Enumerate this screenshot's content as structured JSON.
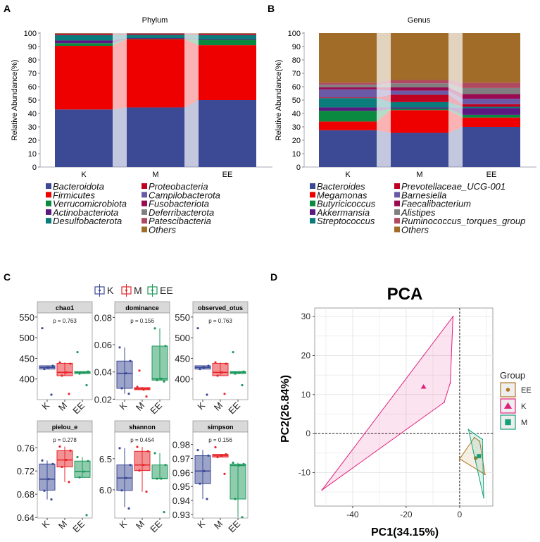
{
  "chart_data": [
    {
      "type": "bar",
      "stacked": true,
      "panel_label": "A",
      "title": "Phylum",
      "ylabel": "Relative Abundance(%)",
      "ylim": [
        0,
        100
      ],
      "yticks": [
        "0",
        "10",
        "20",
        "30",
        "40",
        "50",
        "60",
        "70",
        "80",
        "90",
        "100"
      ],
      "categories": [
        "K",
        "M",
        "EE"
      ],
      "series": [
        {
          "name": "Bacteroidota",
          "color": "#3c4a96",
          "values": [
            43,
            44.5,
            50
          ]
        },
        {
          "name": "Firmicutes",
          "color": "#ee0000",
          "values": [
            47.5,
            51,
            41
          ]
        },
        {
          "name": "Verrucomicrobiota",
          "color": "#0a8a40",
          "values": [
            2,
            0.3,
            4
          ]
        },
        {
          "name": "Actinobacteriota",
          "color": "#5a1880",
          "values": [
            2,
            0.5,
            0.5
          ]
        },
        {
          "name": "Desulfobacterota",
          "color": "#0a7c7c",
          "values": [
            4,
            2.5,
            3
          ]
        },
        {
          "name": "Proteobacteria",
          "color": "#c00020",
          "values": [
            0.8,
            0.7,
            0.8
          ]
        },
        {
          "name": "Campilobacterota",
          "color": "#6a5aa6",
          "values": [
            0.1,
            0.1,
            0.1
          ]
        },
        {
          "name": "Fusobacteriota",
          "color": "#9a0a50",
          "values": [
            0.1,
            0.1,
            0.1
          ]
        },
        {
          "name": "Deferribacterota",
          "color": "#808080",
          "values": [
            0.1,
            0.1,
            0.1
          ]
        },
        {
          "name": "Patescibacteria",
          "color": "#b04a60",
          "values": [
            0.1,
            0.1,
            0.1
          ]
        },
        {
          "name": "Others",
          "color": "#a06c28",
          "values": [
            0.3,
            0.1,
            0.3
          ]
        }
      ]
    },
    {
      "type": "bar",
      "stacked": true,
      "panel_label": "B",
      "title": "Genus",
      "ylabel": "Relative Abundance(%)",
      "ylim": [
        0,
        100
      ],
      "yticks": [
        "0",
        "10",
        "20",
        "30",
        "40",
        "50",
        "60",
        "70",
        "80",
        "90",
        "100"
      ],
      "categories": [
        "K",
        "M",
        "EE"
      ],
      "series": [
        {
          "name": "Bacteroides",
          "color": "#3c4a96",
          "values": [
            27.5,
            25.5,
            30
          ]
        },
        {
          "name": "Megamonas",
          "color": "#ee0000",
          "values": [
            6.5,
            17,
            7
          ]
        },
        {
          "name": "Butyricicoccus",
          "color": "#0a8a40",
          "values": [
            8,
            1,
            2
          ]
        },
        {
          "name": "Akkermansia",
          "color": "#5a1880",
          "values": [
            2.5,
            1,
            5
          ]
        },
        {
          "name": "Streptococcus",
          "color": "#0a7c7c",
          "values": [
            7,
            4,
            1
          ]
        },
        {
          "name": "Prevotellaceae_UCG-001",
          "color": "#c00020",
          "values": [
            0.5,
            5.5,
            2
          ]
        },
        {
          "name": "Barnesiella",
          "color": "#6a5aa6",
          "values": [
            6,
            3,
            4
          ]
        },
        {
          "name": "Faecalibacterium",
          "color": "#9a0a50",
          "values": [
            1.5,
            2.5,
            3.5
          ]
        },
        {
          "name": "Alistipes",
          "color": "#808080",
          "values": [
            2,
            3,
            4.5
          ]
        },
        {
          "name": "Ruminococcus_torques_group",
          "color": "#b04a60",
          "values": [
            1.5,
            2.5,
            4
          ]
        },
        {
          "name": "Others",
          "color": "#a06c28",
          "values": [
            37,
            35,
            37
          ]
        }
      ]
    },
    {
      "type": "boxplot",
      "panel_label": "C",
      "legend": [
        {
          "name": "K",
          "color": "#3c4a96"
        },
        {
          "name": "M",
          "color": "#e8262b"
        },
        {
          "name": "EE",
          "color": "#1f9a5e"
        }
      ],
      "facets": [
        {
          "name": "chao1",
          "p_label": "p = 0.763",
          "ylim": [
            350,
            560
          ],
          "yticks": [
            "400",
            "450",
            "500",
            "550"
          ],
          "groups": [
            {
              "group": "K",
              "q1": 424,
              "median": 428,
              "q3": 432,
              "whisker_low": 424,
              "whisker_high": 432,
              "points": [
                523,
                432,
                428,
                424,
                362
              ]
            },
            {
              "group": "M",
              "q1": 408,
              "median": 416,
              "q3": 438,
              "whisker_low": 408,
              "whisker_high": 440,
              "points": [
                440,
                437,
                416,
                408,
                364
              ]
            },
            {
              "group": "EE",
              "q1": 413,
              "median": 416,
              "q3": 418,
              "whisker_low": 413,
              "whisker_high": 418,
              "points": [
                465,
                418,
                416,
                413,
                385
              ]
            }
          ]
        },
        {
          "name": "dominance",
          "p_label": "p = 0.156",
          "ylim": [
            0.0197,
            0.0833
          ],
          "yticks": [
            "0.02",
            "0.04",
            "0.06",
            "0.08"
          ],
          "groups": [
            {
              "group": "K",
              "q1": 0.028,
              "median": 0.039,
              "q3": 0.048,
              "whisker_low": 0.024,
              "whisker_high": 0.058,
              "points": [
                0.058,
                0.048,
                0.039,
                0.028,
                0.024
              ]
            },
            {
              "group": "M",
              "q1": 0.027,
              "median": 0.0277,
              "q3": 0.0285,
              "whisker_low": 0.027,
              "whisker_high": 0.029,
              "points": [
                0.029,
                0.028,
                0.027,
                0.041,
                0.022
              ]
            },
            {
              "group": "EE",
              "q1": 0.034,
              "median": 0.035,
              "q3": 0.059,
              "whisker_low": 0.034,
              "whisker_high": 0.072,
              "points": [
                0.072,
                0.059,
                0.035,
                0.034,
                0.033
              ]
            }
          ]
        },
        {
          "name": "observed_otus",
          "p_label": "p = 0.763",
          "ylim": [
            350,
            560
          ],
          "yticks": [
            "400",
            "450",
            "500",
            "550"
          ],
          "groups": [
            {
              "group": "K",
              "q1": 424,
              "median": 428,
              "q3": 432,
              "whisker_low": 424,
              "whisker_high": 432,
              "points": [
                523,
                432,
                428,
                424,
                362
              ]
            },
            {
              "group": "M",
              "q1": 408,
              "median": 416,
              "q3": 438,
              "whisker_low": 408,
              "whisker_high": 440,
              "points": [
                440,
                437,
                416,
                408,
                364
              ]
            },
            {
              "group": "EE",
              "q1": 413,
              "median": 416,
              "q3": 418,
              "whisker_low": 413,
              "whisker_high": 418,
              "points": [
                465,
                418,
                416,
                413,
                385
              ]
            }
          ]
        },
        {
          "name": "pielou_e",
          "p_label": "p = 0.278",
          "ylim": [
            0.639,
            0.787
          ],
          "yticks": [
            "0.64",
            "0.68",
            "0.72",
            "0.76"
          ],
          "groups": [
            {
              "group": "K",
              "q1": 0.687,
              "median": 0.706,
              "q3": 0.732,
              "whisker_low": 0.671,
              "whisker_high": 0.738,
              "points": [
                0.738,
                0.732,
                0.706,
                0.686,
                0.671
              ]
            },
            {
              "group": "M",
              "q1": 0.727,
              "median": 0.739,
              "q3": 0.755,
              "whisker_low": 0.701,
              "whisker_high": 0.762,
              "points": [
                0.762,
                0.755,
                0.739,
                0.727,
                0.701
              ]
            },
            {
              "group": "EE",
              "q1": 0.709,
              "median": 0.719,
              "q3": 0.737,
              "whisker_low": 0.709,
              "whisker_high": 0.744,
              "points": [
                0.744,
                0.737,
                0.719,
                0.709,
                0.644
              ]
            }
          ]
        },
        {
          "name": "shannon",
          "p_label": "p = 0.454",
          "ylim": [
            5.545,
            6.93
          ],
          "yticks": [
            "6.0",
            "6.5"
          ],
          "groups": [
            {
              "group": "K",
              "q1": 5.99,
              "median": 6.19,
              "q3": 6.4,
              "whisker_low": 5.72,
              "whisker_high": 6.67,
              "points": [
                6.67,
                6.4,
                6.19,
                5.99,
                5.7
              ]
            },
            {
              "group": "M",
              "q1": 6.31,
              "median": 6.4,
              "q3": 6.62,
              "whisker_low": 5.97,
              "whisker_high": 6.69,
              "points": [
                6.69,
                6.62,
                6.4,
                6.31,
                5.97
              ]
            },
            {
              "group": "EE",
              "q1": 6.18,
              "median": 6.18,
              "q3": 6.4,
              "whisker_low": 6.18,
              "whisker_high": 6.59,
              "points": [
                6.59,
                6.4,
                6.18,
                6.18,
                5.64
              ]
            }
          ]
        },
        {
          "name": "simpson",
          "p_label": "p = 0.156",
          "ylim": [
            0.9274,
            0.9889
          ],
          "yticks": [
            "0.93",
            "0.94",
            "0.95",
            "0.96",
            "0.97",
            "0.98"
          ],
          "groups": [
            {
              "group": "K",
              "q1": 0.952,
              "median": 0.961,
              "q3": 0.972,
              "whisker_low": 0.941,
              "whisker_high": 0.976,
              "points": [
                0.976,
                0.972,
                0.961,
                0.952,
                0.941
              ]
            },
            {
              "group": "M",
              "q1": 0.971,
              "median": 0.972,
              "q3": 0.973,
              "whisker_low": 0.971,
              "whisker_high": 0.973,
              "points": [
                0.978,
                0.973,
                0.972,
                0.971,
                0.959
              ]
            },
            {
              "group": "EE",
              "q1": 0.941,
              "median": 0.965,
              "q3": 0.966,
              "whisker_low": 0.928,
              "whisker_high": 0.967,
              "points": [
                0.967,
                0.966,
                0.965,
                0.941,
                0.928
              ]
            }
          ]
        }
      ]
    },
    {
      "type": "scatter",
      "panel_label": "D",
      "title": "PCA",
      "xlabel": "PC1(34.15%)",
      "ylabel": "PC2(26.84%)",
      "xlim": [
        -54.2,
        12.4
      ],
      "ylim": [
        -18.6,
        32.2
      ],
      "xticks": [
        "-40",
        "-20",
        "0"
      ],
      "yticks": [
        "-10",
        "0",
        "10",
        "20",
        "30"
      ],
      "grid": true,
      "legend_title": "Group",
      "legend_position": "right",
      "series": [
        {
          "name": "EE",
          "color": "#b07820",
          "marker": "circle",
          "centroid": [
            6,
            -6.3
          ],
          "hull": [
            [
              0,
              -6.5
            ],
            [
              5.5,
              -1
            ],
            [
              7.5,
              -2
            ],
            [
              9.5,
              -10.5
            ]
          ]
        },
        {
          "name": "K",
          "color": "#e0207f",
          "marker": "triangle",
          "centroid": [
            -13.5,
            12
          ],
          "hull": [
            [
              -51.5,
              -14.5
            ],
            [
              -2.5,
              30
            ],
            [
              -3.5,
              13
            ],
            [
              -5.8,
              8
            ]
          ]
        },
        {
          "name": "M",
          "color": "#14a078",
          "marker": "square",
          "centroid": [
            7.2,
            -5.8
          ],
          "hull": [
            [
              3.3,
              1
            ],
            [
              8.5,
              -1.5
            ],
            [
              9,
              -16.5
            ]
          ]
        }
      ]
    }
  ]
}
